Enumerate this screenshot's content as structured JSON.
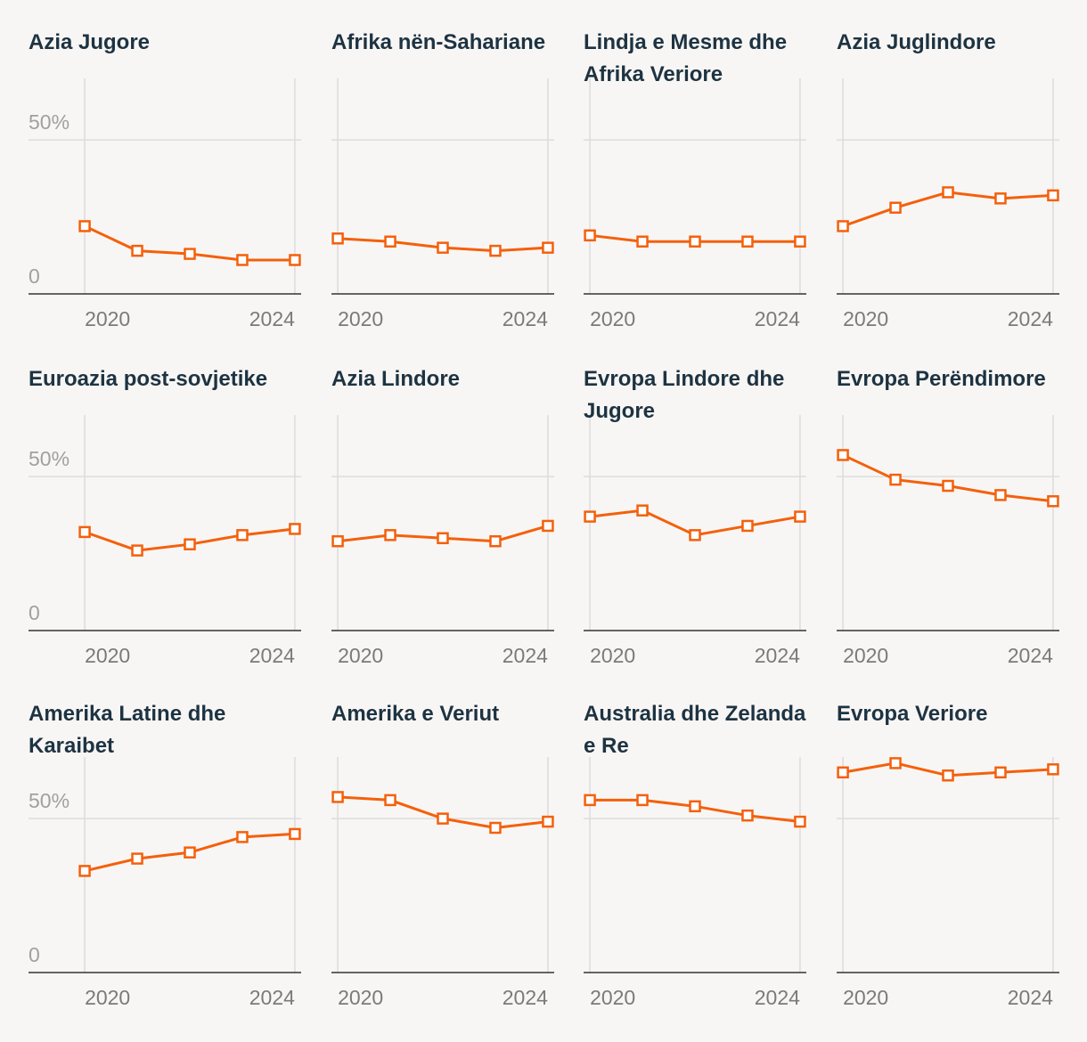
{
  "chart_data": [
    {
      "type": "line",
      "title": "Azia Jugore",
      "x": [
        2020,
        2021,
        2022,
        2023,
        2024
      ],
      "values": [
        22,
        14,
        13,
        11,
        11
      ],
      "xlim": [
        2019.88,
        2024.12
      ],
      "xticks": [
        2020,
        2024
      ],
      "ylim": [
        0,
        70
      ],
      "yticks": [
        0,
        {
          "value": 50,
          "label": "50%"
        }
      ],
      "color": "#f4600c"
    },
    {
      "type": "line",
      "title": "Afrika nën-Sahariane",
      "x": [
        2020,
        2021,
        2022,
        2023,
        2024
      ],
      "values": [
        18,
        17,
        15,
        14,
        15
      ],
      "xlim": [
        2019.88,
        2024.12
      ],
      "xticks": [
        2020,
        2024
      ],
      "ylim": [
        0,
        70
      ],
      "yticks": [
        0,
        50
      ],
      "color": "#f4600c"
    },
    {
      "type": "line",
      "title": "Lindja e Mesme dhe Afrika Veriore",
      "x": [
        2020,
        2021,
        2022,
        2023,
        2024
      ],
      "values": [
        19,
        17,
        17,
        17,
        17
      ],
      "xlim": [
        2019.88,
        2024.12
      ],
      "xticks": [
        2020,
        2024
      ],
      "ylim": [
        0,
        70
      ],
      "yticks": [
        0,
        50
      ],
      "color": "#f4600c"
    },
    {
      "type": "line",
      "title": "Azia Juglindore",
      "x": [
        2020,
        2021,
        2022,
        2023,
        2024
      ],
      "values": [
        22,
        28,
        33,
        31,
        32
      ],
      "xlim": [
        2019.88,
        2024.12
      ],
      "xticks": [
        2020,
        2024
      ],
      "ylim": [
        0,
        70
      ],
      "yticks": [
        0,
        50
      ],
      "color": "#f4600c"
    },
    {
      "type": "line",
      "title": "Euroazia post-sovjetike",
      "x": [
        2020,
        2021,
        2022,
        2023,
        2024
      ],
      "values": [
        32,
        26,
        28,
        31,
        33
      ],
      "xlim": [
        2019.88,
        2024.12
      ],
      "xticks": [
        2020,
        2024
      ],
      "ylim": [
        0,
        70
      ],
      "yticks": [
        0,
        {
          "value": 50,
          "label": "50%"
        }
      ],
      "color": "#f4600c"
    },
    {
      "type": "line",
      "title": "Azia Lindore",
      "x": [
        2020,
        2021,
        2022,
        2023,
        2024
      ],
      "values": [
        29,
        31,
        30,
        29,
        34
      ],
      "xlim": [
        2019.88,
        2024.12
      ],
      "xticks": [
        2020,
        2024
      ],
      "ylim": [
        0,
        70
      ],
      "yticks": [
        0,
        50
      ],
      "color": "#f4600c"
    },
    {
      "type": "line",
      "title": "Evropa Lindore dhe Jugore",
      "x": [
        2020,
        2021,
        2022,
        2023,
        2024
      ],
      "values": [
        37,
        39,
        31,
        34,
        37
      ],
      "xlim": [
        2019.88,
        2024.12
      ],
      "xticks": [
        2020,
        2024
      ],
      "ylim": [
        0,
        70
      ],
      "yticks": [
        0,
        50
      ],
      "color": "#f4600c"
    },
    {
      "type": "line",
      "title": "Evropa Perëndimore",
      "x": [
        2020,
        2021,
        2022,
        2023,
        2024
      ],
      "values": [
        57,
        49,
        47,
        44,
        42
      ],
      "xlim": [
        2019.88,
        2024.12
      ],
      "xticks": [
        2020,
        2024
      ],
      "ylim": [
        0,
        70
      ],
      "yticks": [
        0,
        50
      ],
      "color": "#f4600c"
    },
    {
      "type": "line",
      "title": "Amerika Latine dhe Karaibet",
      "x": [
        2020,
        2021,
        2022,
        2023,
        2024
      ],
      "values": [
        33,
        37,
        39,
        44,
        45
      ],
      "xlim": [
        2019.88,
        2024.12
      ],
      "xticks": [
        2020,
        2024
      ],
      "ylim": [
        0,
        70
      ],
      "yticks": [
        0,
        {
          "value": 50,
          "label": "50%"
        }
      ],
      "color": "#f4600c"
    },
    {
      "type": "line",
      "title": "Amerika e Veriut",
      "x": [
        2020,
        2021,
        2022,
        2023,
        2024
      ],
      "values": [
        57,
        56,
        50,
        47,
        49
      ],
      "xlim": [
        2019.88,
        2024.12
      ],
      "xticks": [
        2020,
        2024
      ],
      "ylim": [
        0,
        70
      ],
      "yticks": [
        0,
        50
      ],
      "color": "#f4600c"
    },
    {
      "type": "line",
      "title": "Australia dhe Zelanda e Re",
      "x": [
        2020,
        2021,
        2022,
        2023,
        2024
      ],
      "values": [
        56,
        56,
        54,
        51,
        49
      ],
      "xlim": [
        2019.88,
        2024.12
      ],
      "xticks": [
        2020,
        2024
      ],
      "ylim": [
        0,
        70
      ],
      "yticks": [
        0,
        50
      ],
      "color": "#f4600c"
    },
    {
      "type": "line",
      "title": "Evropa Veriore",
      "x": [
        2020,
        2021,
        2022,
        2023,
        2024
      ],
      "values": [
        65,
        68,
        64,
        65,
        66
      ],
      "xlim": [
        2019.88,
        2024.12
      ],
      "xticks": [
        2020,
        2024
      ],
      "ylim": [
        0,
        70
      ],
      "yticks": [
        0,
        50
      ],
      "color": "#f4600c"
    }
  ]
}
